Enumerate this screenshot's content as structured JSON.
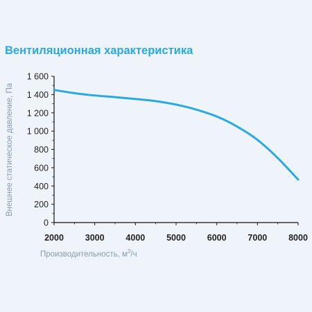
{
  "chart_data": {
    "type": "line",
    "title": "Вентиляционная характеристика",
    "xlabel": "Производительность, м³/ч",
    "ylabel": "Внешнее статическое давление, Па",
    "xlim": [
      2000,
      8000
    ],
    "ylim": [
      0,
      1600
    ],
    "xticks": [
      "2000",
      "3000",
      "4000",
      "5000",
      "6000",
      "7000",
      "8000"
    ],
    "xtick_values": [
      2000,
      3000,
      4000,
      5000,
      6000,
      7000,
      8000
    ],
    "yticks": [
      "0",
      "200",
      "400",
      "600",
      "800",
      "1 000",
      "1 200",
      "1 400",
      "1 600"
    ],
    "ytick_values": [
      0,
      200,
      400,
      600,
      800,
      1000,
      1200,
      1400,
      1600
    ],
    "grid": false,
    "series": [
      {
        "color": "#29a9e0",
        "x": [
          2000,
          2500,
          3000,
          3500,
          4000,
          4500,
          5000,
          5500,
          6000,
          6500,
          7000,
          7500,
          8000
        ],
        "y": [
          1450,
          1415,
          1390,
          1372,
          1352,
          1328,
          1290,
          1235,
          1160,
          1050,
          905,
          705,
          470
        ]
      }
    ]
  },
  "colors": {
    "title": "#29a9e0",
    "line": "#29a9e0",
    "axis": "#111111",
    "axis_title": "#8a9aa8",
    "background": "#eef4fa"
  }
}
